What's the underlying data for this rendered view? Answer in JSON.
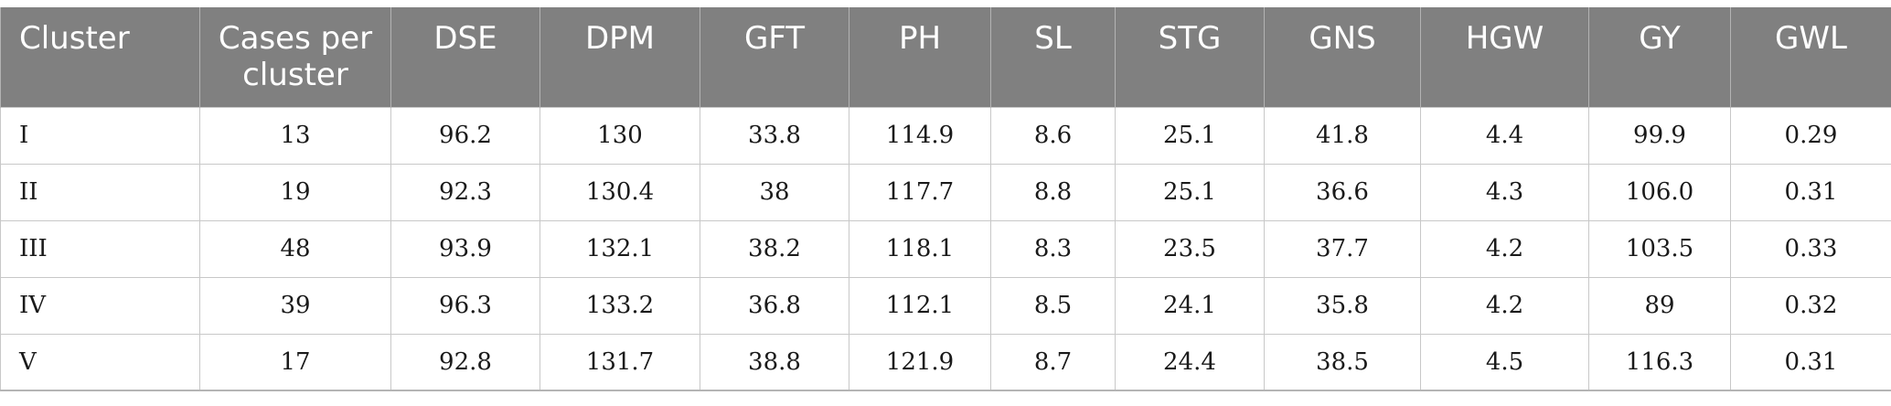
{
  "table": {
    "headers": [
      "Cluster",
      "Cases per cluster",
      "DSE",
      "DPM",
      "GFT",
      "PH",
      "SL",
      "STG",
      "GNS",
      "HGW",
      "GY",
      "GWL"
    ],
    "rows": [
      [
        "I",
        "13",
        "96.2",
        "130",
        "33.8",
        "114.9",
        "8.6",
        "25.1",
        "41.8",
        "4.4",
        "99.9",
        "0.29"
      ],
      [
        "II",
        "19",
        "92.3",
        "130.4",
        "38",
        "117.7",
        "8.8",
        "25.1",
        "36.6",
        "4.3",
        "106.0",
        "0.31"
      ],
      [
        "III",
        "48",
        "93.9",
        "132.1",
        "38.2",
        "118.1",
        "8.3",
        "23.5",
        "37.7",
        "4.2",
        "103.5",
        "0.33"
      ],
      [
        "IV",
        "39",
        "96.3",
        "133.2",
        "36.8",
        "112.1",
        "8.5",
        "24.1",
        "35.8",
        "4.2",
        "89",
        "0.32"
      ],
      [
        "V",
        "17",
        "92.8",
        "131.7",
        "38.8",
        "121.9",
        "8.7",
        "24.4",
        "38.5",
        "4.5",
        "116.3",
        "0.31"
      ]
    ]
  }
}
